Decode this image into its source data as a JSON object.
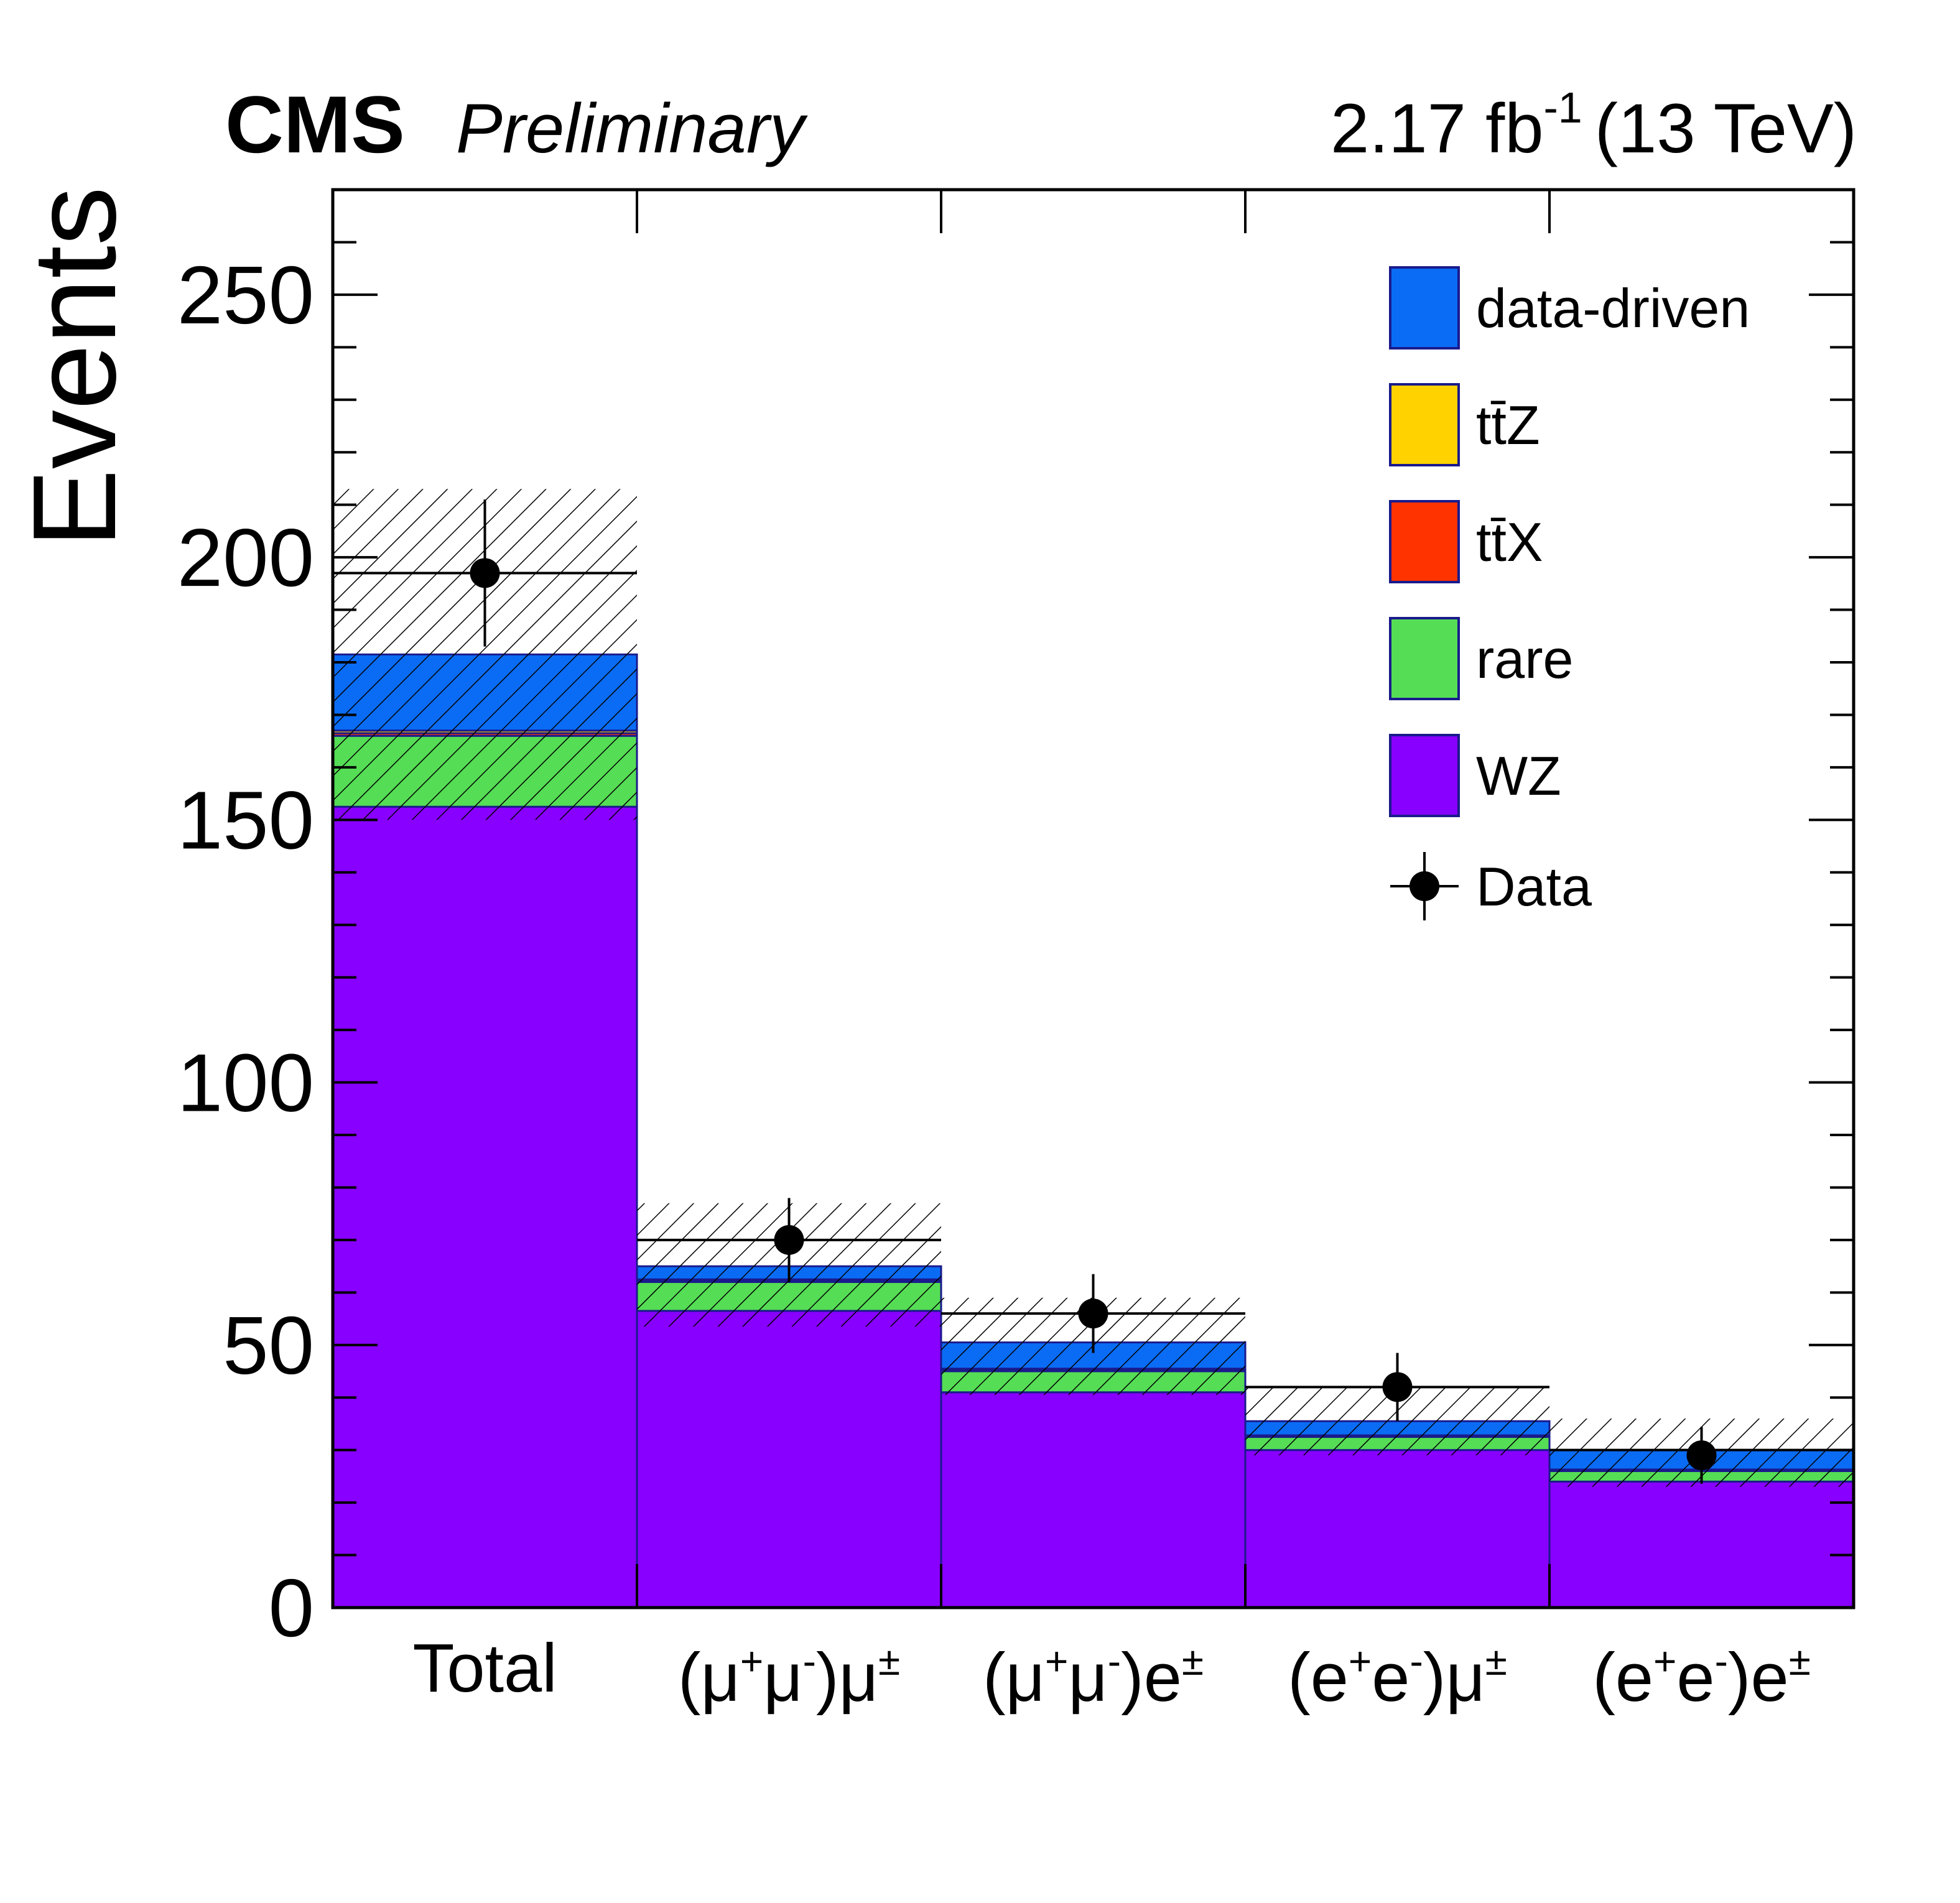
{
  "header": {
    "experiment": "CMS",
    "status": "Preliminary",
    "lumi_value": "2.17 fb",
    "lumi_exponent": "-1",
    "energy": "(13 TeV)"
  },
  "chart_data": {
    "type": "bar",
    "stacked": true,
    "categories": [
      {
        "base": "Total",
        "parts": []
      },
      {
        "base": "(μ",
        "parts": [
          [
            "+",
            "sup"
          ],
          [
            "μ",
            "base"
          ],
          [
            "-",
            "sup"
          ],
          [
            ")μ",
            "base"
          ],
          [
            "±",
            "sup"
          ]
        ]
      },
      {
        "base": "(μ",
        "parts": [
          [
            "+",
            "sup"
          ],
          [
            "μ",
            "base"
          ],
          [
            "-",
            "sup"
          ],
          [
            ")e",
            "base"
          ],
          [
            "±",
            "sup"
          ]
        ]
      },
      {
        "base": "(e",
        "parts": [
          [
            "+",
            "sup"
          ],
          [
            "e",
            "base"
          ],
          [
            "-",
            "sup"
          ],
          [
            ")μ",
            "base"
          ],
          [
            "±",
            "sup"
          ]
        ]
      },
      {
        "base": "(e",
        "parts": [
          [
            "+",
            "sup"
          ],
          [
            "e",
            "base"
          ],
          [
            "-",
            "sup"
          ],
          [
            ")e",
            "base"
          ],
          [
            "±",
            "sup"
          ]
        ]
      }
    ],
    "ylabel": "Events",
    "ylim": [
      0,
      270
    ],
    "yticks": [
      0,
      50,
      100,
      150,
      200,
      250
    ],
    "series": [
      {
        "name": "WZ",
        "color": "#8800ff",
        "values": [
          152.5,
          56.5,
          41.0,
          30.0,
          24.0
        ]
      },
      {
        "name": "rare",
        "color": "#55dd55",
        "values": [
          13.5,
          5.5,
          4.0,
          2.5,
          2.0
        ]
      },
      {
        "name": "ttX",
        "color": "#ff3300",
        "values": [
          0.5,
          0.3,
          0.3,
          0.2,
          0.2
        ]
      },
      {
        "name": "ttZ",
        "color": "#ffd200",
        "values": [
          0.5,
          0.2,
          0.2,
          0.1,
          0.1
        ]
      },
      {
        "name": "data-driven",
        "color": "#0a6cf5",
        "values": [
          14.5,
          2.5,
          5.0,
          2.7,
          3.7
        ]
      }
    ],
    "uncertainty_bands": [
      {
        "total": [
          197.0,
          70.0,
          56.0,
          42.0,
          30.0
        ],
        "lo": [
          150.0,
          53.5,
          40.5,
          29.0,
          23.0
        ],
        "hi": [
          213.0,
          77.0,
          59.0,
          42.0,
          36.0
        ]
      }
    ],
    "data": {
      "name": "Data",
      "values": [
        197,
        70,
        56,
        42,
        29
      ],
      "errors": [
        14,
        8,
        7.5,
        6.5,
        5.4
      ]
    },
    "legend_position": "top-right",
    "legend": [
      {
        "label": "data-driven",
        "kind": "box",
        "color": "#0a6cf5"
      },
      {
        "label": "tt̄Z",
        "kind": "box",
        "color": "#ffd200"
      },
      {
        "label": "tt̄X",
        "kind": "box",
        "color": "#ff3300"
      },
      {
        "label": "rare",
        "kind": "box",
        "color": "#55dd55"
      },
      {
        "label": "WZ",
        "kind": "box",
        "color": "#8800ff"
      },
      {
        "label": "Data",
        "kind": "marker",
        "color": "#000000"
      }
    ]
  }
}
